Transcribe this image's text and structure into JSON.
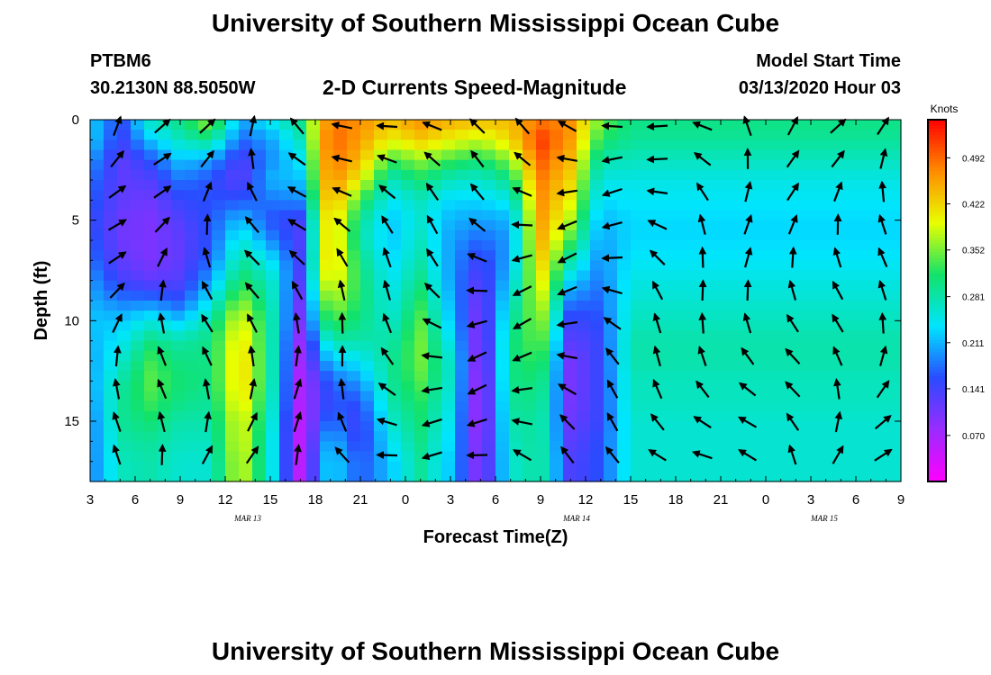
{
  "header": {
    "title": "University of Southern Mississippi Ocean Cube",
    "station": "PTBM6",
    "coords": "30.2130N 88.5050W",
    "subtitle": "2-D Currents Speed-Magnitude",
    "model_label": "Model Start Time",
    "model_time": "03/13/2020 Hour 03"
  },
  "footer": {
    "title": "University of Southern Mississippi Ocean Cube"
  },
  "chart_data": {
    "type": "heatmap",
    "xlabel": "Forecast Time(Z)",
    "ylabel": "Depth (ft)",
    "x_ticks": [
      "3",
      "6",
      "9",
      "12",
      "15",
      "18",
      "21",
      "0",
      "3",
      "6",
      "9",
      "12",
      "15",
      "18",
      "21",
      "0",
      "3",
      "6",
      "9"
    ],
    "x_range_hours_from_start": [
      0,
      54
    ],
    "date_labels": [
      {
        "label": "MAR 13",
        "at_tick": 3.5
      },
      {
        "label": "MAR 14",
        "at_tick": 10.8
      },
      {
        "label": "MAR 15",
        "at_tick": 16.3
      }
    ],
    "y_ticks": [
      0,
      5,
      10,
      15
    ],
    "ylim": [
      0,
      18
    ],
    "y_reversed": true,
    "colorbar": {
      "unit": "Knots",
      "ticks": [
        0.492,
        0.422,
        0.352,
        0.281,
        0.211,
        0.141,
        0.07
      ],
      "range": [
        0.0,
        0.55
      ],
      "colors": [
        "#ff00ff",
        "#9b2bff",
        "#2a4bff",
        "#00e5ff",
        "#12e26a",
        "#e8ff00",
        "#ff8c00",
        "#ff0000"
      ]
    },
    "speed_profiles": [
      {
        "time": 0,
        "speeds": [
          0.23,
          0.23,
          0.2,
          0.18,
          0.17,
          0.16,
          0.17,
          0.18,
          0.2,
          0.21,
          0.22,
          0.21,
          0.2,
          0.2,
          0.19,
          0.18,
          0.18,
          0.18
        ]
      },
      {
        "time": 2,
        "speeds": [
          0.15,
          0.14,
          0.12,
          0.12,
          0.12,
          0.11,
          0.11,
          0.12,
          0.14,
          0.18,
          0.22,
          0.24,
          0.26,
          0.28,
          0.29,
          0.29,
          0.28,
          0.27
        ]
      },
      {
        "time": 4,
        "speeds": [
          0.27,
          0.22,
          0.16,
          0.13,
          0.11,
          0.1,
          0.1,
          0.1,
          0.12,
          0.18,
          0.25,
          0.3,
          0.33,
          0.34,
          0.33,
          0.31,
          0.29,
          0.28
        ]
      },
      {
        "time": 6,
        "speeds": [
          0.3,
          0.27,
          0.22,
          0.18,
          0.15,
          0.13,
          0.12,
          0.12,
          0.13,
          0.16,
          0.22,
          0.28,
          0.3,
          0.31,
          0.3,
          0.28,
          0.27,
          0.26
        ]
      },
      {
        "time": 8,
        "speeds": [
          0.37,
          0.3,
          0.2,
          0.16,
          0.16,
          0.16,
          0.16,
          0.17,
          0.2,
          0.24,
          0.28,
          0.3,
          0.3,
          0.3,
          0.29,
          0.28,
          0.27,
          0.26
        ]
      },
      {
        "time": 10,
        "speeds": [
          0.2,
          0.17,
          0.13,
          0.12,
          0.16,
          0.22,
          0.26,
          0.29,
          0.32,
          0.36,
          0.4,
          0.42,
          0.43,
          0.43,
          0.42,
          0.4,
          0.4,
          0.39
        ]
      },
      {
        "time": 12,
        "speeds": [
          0.25,
          0.2,
          0.19,
          0.21,
          0.18,
          0.16,
          0.19,
          0.24,
          0.27,
          0.28,
          0.29,
          0.29,
          0.29,
          0.29,
          0.28,
          0.27,
          0.26,
          0.26
        ]
      },
      {
        "time": 14,
        "speeds": [
          0.3,
          0.27,
          0.24,
          0.22,
          0.19,
          0.14,
          0.13,
          0.14,
          0.13,
          0.11,
          0.1,
          0.08,
          0.07,
          0.06,
          0.06,
          0.05,
          0.05,
          0.05
        ]
      },
      {
        "time": 16,
        "speeds": [
          0.48,
          0.5,
          0.49,
          0.48,
          0.46,
          0.44,
          0.44,
          0.44,
          0.42,
          0.38,
          0.34,
          0.28,
          0.22,
          0.17,
          0.16,
          0.18,
          0.22,
          0.24
        ]
      },
      {
        "time": 18,
        "speeds": [
          0.47,
          0.46,
          0.44,
          0.4,
          0.33,
          0.29,
          0.28,
          0.3,
          0.31,
          0.31,
          0.3,
          0.28,
          0.24,
          0.2,
          0.16,
          0.14,
          0.14,
          0.16
        ]
      },
      {
        "time": 20,
        "speeds": [
          0.44,
          0.4,
          0.33,
          0.27,
          0.24,
          0.22,
          0.22,
          0.23,
          0.24,
          0.25,
          0.26,
          0.28,
          0.29,
          0.29,
          0.28,
          0.26,
          0.24,
          0.22
        ]
      },
      {
        "time": 22,
        "speeds": [
          0.47,
          0.43,
          0.36,
          0.31,
          0.27,
          0.26,
          0.27,
          0.28,
          0.3,
          0.32,
          0.34,
          0.35,
          0.35,
          0.34,
          0.32,
          0.31,
          0.3,
          0.29
        ]
      },
      {
        "time": 24,
        "speeds": [
          0.45,
          0.4,
          0.33,
          0.27,
          0.23,
          0.21,
          0.2,
          0.2,
          0.2,
          0.21,
          0.22,
          0.24,
          0.26,
          0.26,
          0.25,
          0.24,
          0.23,
          0.22
        ]
      },
      {
        "time": 26,
        "speeds": [
          0.44,
          0.38,
          0.31,
          0.26,
          0.23,
          0.2,
          0.17,
          0.14,
          0.12,
          0.1,
          0.09,
          0.08,
          0.07,
          0.06,
          0.06,
          0.06,
          0.07,
          0.08
        ]
      },
      {
        "time": 28,
        "speeds": [
          0.44,
          0.42,
          0.36,
          0.3,
          0.25,
          0.21,
          0.2,
          0.21,
          0.23,
          0.26,
          0.28,
          0.3,
          0.3,
          0.3,
          0.29,
          0.28,
          0.27,
          0.26
        ]
      },
      {
        "time": 30,
        "speeds": [
          0.48,
          0.52,
          0.5,
          0.48,
          0.47,
          0.46,
          0.45,
          0.43,
          0.41,
          0.39,
          0.37,
          0.35,
          0.33,
          0.31,
          0.3,
          0.29,
          0.29,
          0.29
        ]
      },
      {
        "time": 32,
        "speeds": [
          0.47,
          0.46,
          0.44,
          0.42,
          0.4,
          0.37,
          0.33,
          0.28,
          0.23,
          0.18,
          0.14,
          0.12,
          0.1,
          0.1,
          0.1,
          0.11,
          0.12,
          0.13
        ]
      },
      {
        "time": 34,
        "speeds": [
          0.35,
          0.32,
          0.28,
          0.25,
          0.23,
          0.21,
          0.2,
          0.19,
          0.18,
          0.17,
          0.16,
          0.15,
          0.15,
          0.15,
          0.15,
          0.15,
          0.16,
          0.16
        ]
      },
      {
        "time": 36,
        "speeds": [
          0.3,
          0.29,
          0.27,
          0.25,
          0.24,
          0.23,
          0.23,
          0.24,
          0.25,
          0.26,
          0.27,
          0.28,
          0.28,
          0.27,
          0.27,
          0.26,
          0.26,
          0.26
        ]
      }
    ]
  }
}
